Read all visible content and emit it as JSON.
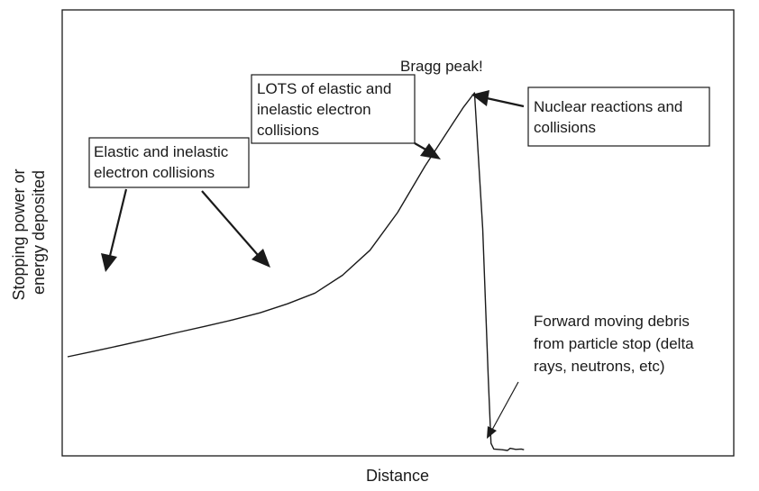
{
  "chart_data": {
    "type": "line",
    "title": "",
    "xlabel": "Distance",
    "ylabel_lines": [
      "Stopping power or",
      "energy deposited"
    ],
    "x_ticks": [],
    "y_ticks": [],
    "grid": false,
    "legend": "none",
    "series": [
      {
        "x": [
          0,
          0.05,
          0.1,
          0.15,
          0.2,
          0.25,
          0.3,
          0.35,
          0.4,
          0.45,
          0.5,
          0.55,
          0.6,
          0.65,
          0.7,
          0.72,
          0.74,
          0.755,
          0.765,
          0.77,
          0.775,
          0.79,
          0.8,
          0.805,
          0.815,
          0.825,
          0.83
        ],
        "y": [
          0.262,
          0.278,
          0.295,
          0.312,
          0.33,
          0.347,
          0.365,
          0.385,
          0.41,
          0.44,
          0.49,
          0.56,
          0.665,
          0.795,
          0.913,
          0.96,
          1.0,
          0.62,
          0.2,
          0.02,
          0.004,
          0.002,
          0.0,
          0.006,
          0.003,
          0.004,
          0.002
        ]
      }
    ],
    "annotations": {
      "bragg": {
        "text": "Bragg peak!"
      },
      "elastic": {
        "lines": [
          "Elastic and inelastic",
          "electron collisions"
        ]
      },
      "lots": {
        "lines": [
          "LOTS of elastic and",
          "inelastic electron",
          "collisions"
        ]
      },
      "nuclear": {
        "lines": [
          "Nuclear reactions and",
          "collisions"
        ]
      },
      "debris": {
        "lines": [
          "Forward moving debris",
          "from particle stop (delta",
          "rays, neutrons, etc)"
        ]
      }
    }
  }
}
